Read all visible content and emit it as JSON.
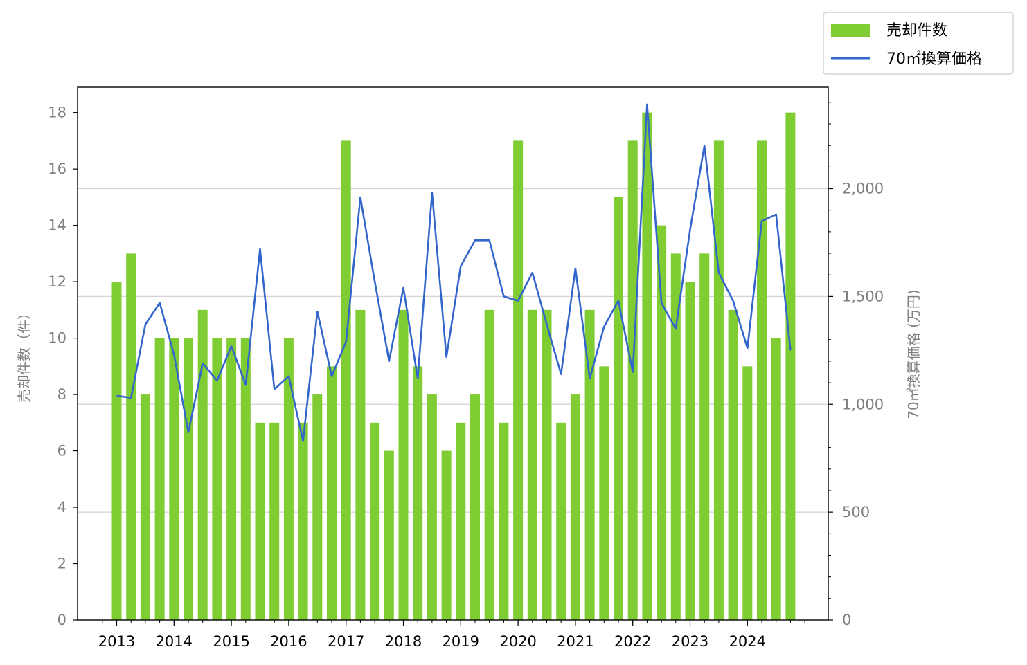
{
  "chart_data": {
    "type": "bar+line",
    "legend": {
      "placement": "top-right",
      "entries": [
        "売却件数",
        "70㎡換算価格"
      ]
    },
    "colors": {
      "bars": "#7fcc33",
      "line": "#3366cc",
      "grid": "#d3d3d3"
    },
    "y_left": {
      "label": "売却件数（件）",
      "lim": [
        0,
        18.9
      ],
      "ticks": [
        0,
        2,
        4,
        6,
        8,
        10,
        12,
        14,
        16,
        18
      ],
      "tick_labels": [
        "0",
        "2",
        "4",
        "6",
        "8",
        "10",
        "12",
        "14",
        "16",
        "18"
      ]
    },
    "y_right": {
      "label": "70㎡換算価格 (万円)",
      "lim": [
        0,
        2470
      ],
      "ticks": [
        0,
        500,
        1000,
        1500,
        2000
      ],
      "tick_labels": [
        "0",
        "500",
        "1,000",
        "1,500",
        "2,000"
      ],
      "grid": true
    },
    "x_year_labels": [
      "2013",
      "2014",
      "2015",
      "2016",
      "2017",
      "2018",
      "2019",
      "2020",
      "2021",
      "2022",
      "2023",
      "2024"
    ],
    "quarters": [
      "2013Q1",
      "2013Q2",
      "2013Q3",
      "2013Q4",
      "2014Q1",
      "2014Q2",
      "2014Q3",
      "2014Q4",
      "2015Q1",
      "2015Q2",
      "2015Q3",
      "2015Q4",
      "2016Q1",
      "2016Q2",
      "2016Q3",
      "2016Q4",
      "2017Q1",
      "2017Q2",
      "2017Q3",
      "2017Q4",
      "2018Q1",
      "2018Q2",
      "2018Q3",
      "2018Q4",
      "2019Q1",
      "2019Q2",
      "2019Q3",
      "2019Q4",
      "2020Q1",
      "2020Q2",
      "2020Q3",
      "2020Q4",
      "2021Q1",
      "2021Q2",
      "2021Q3",
      "2021Q4",
      "2022Q1",
      "2022Q2",
      "2022Q3",
      "2022Q4",
      "2023Q1",
      "2023Q2",
      "2023Q3",
      "2023Q4",
      "2024Q1",
      "2024Q2",
      "2024Q3",
      "2024Q4"
    ],
    "series": [
      {
        "name": "売却件数",
        "type": "bar",
        "axis": "left",
        "values": [
          12,
          13,
          8,
          10,
          10,
          10,
          11,
          10,
          10,
          10,
          7,
          7,
          10,
          7,
          8,
          9,
          17,
          11,
          7,
          6,
          11,
          9,
          8,
          6,
          7,
          8,
          11,
          7,
          17,
          11,
          11,
          7,
          8,
          11,
          9,
          15,
          17,
          18,
          14,
          13,
          12,
          13,
          17,
          11,
          9,
          17,
          10,
          18
        ]
      },
      {
        "name": "70㎡換算価格",
        "type": "line",
        "axis": "right",
        "values": [
          1040,
          1030,
          1370,
          1470,
          1230,
          870,
          1190,
          1110,
          1270,
          1090,
          1720,
          1070,
          1130,
          830,
          1430,
          1130,
          1290,
          1960,
          1570,
          1200,
          1540,
          1120,
          1980,
          1220,
          1640,
          1760,
          1760,
          1500,
          1480,
          1610,
          1370,
          1140,
          1630,
          1120,
          1360,
          1480,
          1150,
          2390,
          1470,
          1350,
          1810,
          2200,
          1610,
          1480,
          1260,
          1850,
          1880,
          1250
        ]
      }
    ]
  }
}
